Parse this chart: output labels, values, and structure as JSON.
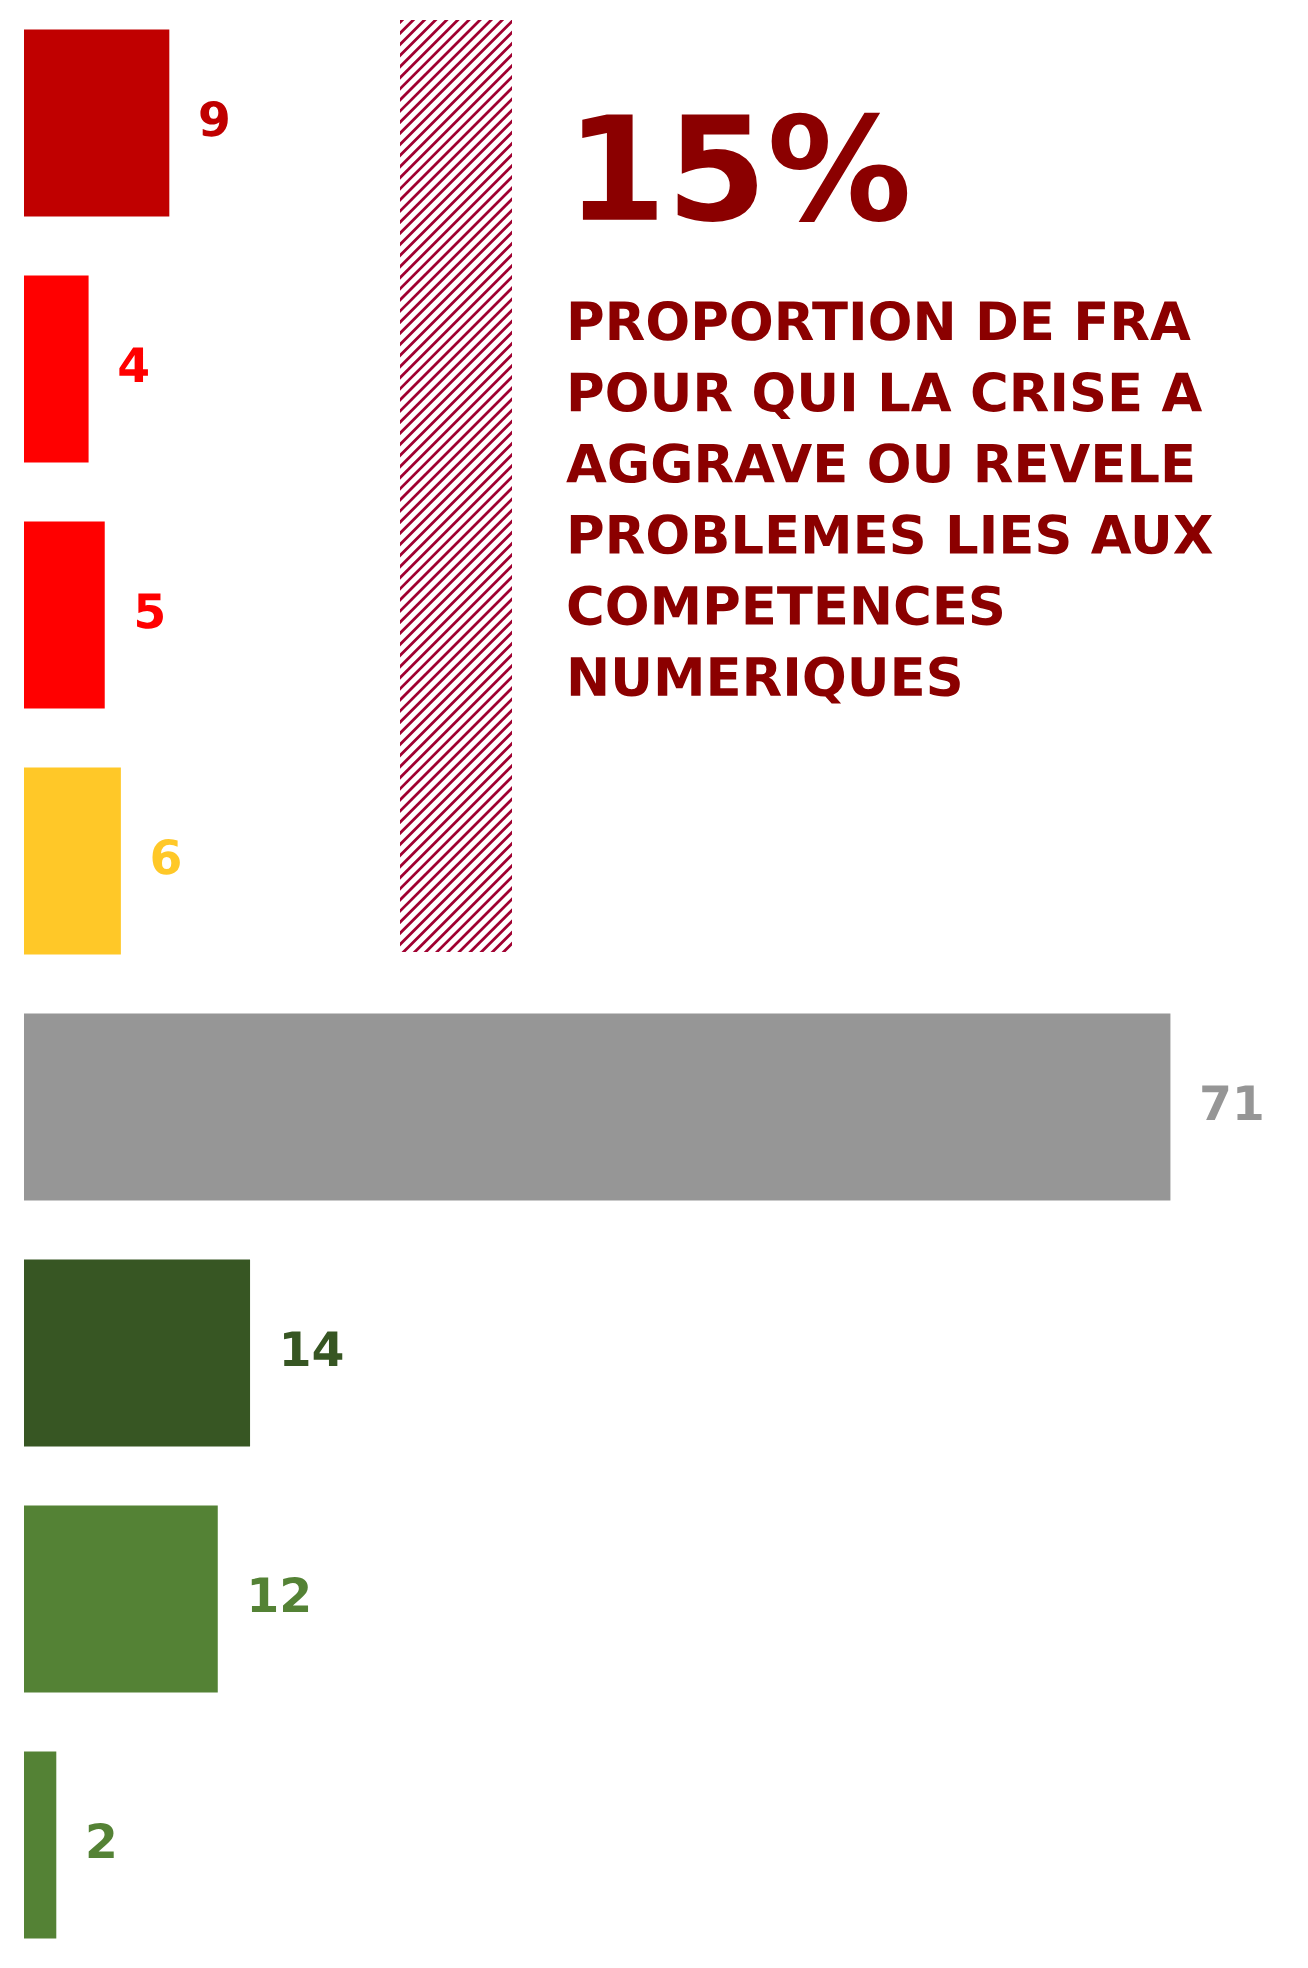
{
  "chart_data": {
    "type": "bar",
    "orientation": "horizontal",
    "categories": [
      null,
      null,
      null,
      null,
      null,
      null,
      null,
      null
    ],
    "values": [
      9,
      4,
      5,
      6,
      71,
      14,
      12,
      2
    ],
    "colors": [
      "#c00000",
      "#ff0000",
      "#ff0000",
      "#ffc828",
      "#969696",
      "#375623",
      "#548235",
      "#548235"
    ],
    "data_labels": true,
    "grid": false,
    "legend": false,
    "annotations": [
      "15%",
      "PROPORTION DE FRA POUR QUI LA CRISE A AGGRAVE OU REVELE PROBLEMES LIES AUX COMPETENCES NUMERIQUES"
    ]
  }
}
